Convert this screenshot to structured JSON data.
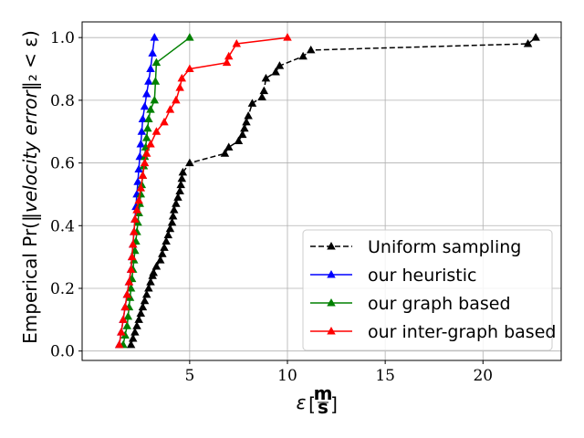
{
  "chart_data": {
    "type": "line",
    "xlabel_symbol": "ε",
    "xlabel_unit_num": "m",
    "xlabel_unit_den": "s",
    "ylabel_prefix": "Emperical Pr(‖",
    "ylabel_italic": "velocity error",
    "ylabel_suffix": "‖₂ < ε)",
    "xlim": [
      -0.5,
      24.0
    ],
    "ylim": [
      -0.03,
      1.05
    ],
    "xticks": [
      5,
      10,
      15,
      20
    ],
    "xtick_labels": [
      "5",
      "10",
      "15",
      "20"
    ],
    "yticks": [
      0.0,
      0.2,
      0.4,
      0.6,
      0.8,
      1.0
    ],
    "ytick_labels": [
      "0.0",
      "0.2",
      "0.4",
      "0.6",
      "0.8",
      "1.0"
    ],
    "grid": true,
    "legend_position": "bottom-right",
    "series": [
      {
        "name": "Uniform sampling",
        "color": "#000000",
        "dash": "dashed",
        "marker": "triangle",
        "x": [
          2.0,
          2.1,
          2.2,
          2.3,
          2.4,
          2.5,
          2.6,
          2.7,
          2.8,
          2.9,
          3.0,
          3.1,
          3.15,
          3.3,
          3.5,
          3.6,
          3.7,
          3.8,
          3.9,
          4.0,
          4.1,
          4.15,
          4.2,
          4.3,
          4.4,
          4.5,
          4.55,
          4.6,
          4.65,
          5.0,
          6.8,
          7.0,
          7.5,
          7.7,
          7.8,
          7.9,
          8.0,
          8.2,
          8.7,
          8.8,
          8.9,
          9.4,
          9.6,
          10.8,
          11.2,
          22.3,
          22.7
        ],
        "y": [
          0.02,
          0.04,
          0.06,
          0.08,
          0.1,
          0.12,
          0.14,
          0.16,
          0.18,
          0.2,
          0.22,
          0.24,
          0.25,
          0.27,
          0.29,
          0.31,
          0.33,
          0.35,
          0.37,
          0.39,
          0.41,
          0.43,
          0.45,
          0.47,
          0.49,
          0.51,
          0.53,
          0.55,
          0.57,
          0.6,
          0.63,
          0.65,
          0.67,
          0.69,
          0.71,
          0.73,
          0.75,
          0.79,
          0.81,
          0.83,
          0.87,
          0.89,
          0.91,
          0.94,
          0.96,
          0.98,
          1.0
        ]
      },
      {
        "name": "our heuristic",
        "color": "#0000ff",
        "dash": "solid",
        "marker": "triangle",
        "x": [
          1.4,
          1.5,
          1.6,
          1.7,
          1.8,
          1.9,
          2.0,
          2.05,
          2.1,
          2.15,
          2.2,
          2.25,
          2.3,
          2.35,
          2.4,
          2.45,
          2.5,
          2.55,
          2.6,
          2.7,
          2.8,
          2.9,
          3.0,
          3.1,
          3.2
        ],
        "y": [
          0.02,
          0.06,
          0.1,
          0.14,
          0.18,
          0.22,
          0.26,
          0.3,
          0.34,
          0.38,
          0.42,
          0.46,
          0.5,
          0.54,
          0.58,
          0.62,
          0.66,
          0.7,
          0.74,
          0.78,
          0.82,
          0.86,
          0.9,
          0.95,
          1.0
        ]
      },
      {
        "name": "our graph based",
        "color": "#008000",
        "dash": "solid",
        "marker": "triangle",
        "x": [
          1.6,
          1.7,
          1.8,
          1.85,
          1.9,
          1.95,
          2.0,
          2.05,
          2.1,
          2.15,
          2.2,
          2.25,
          2.3,
          2.35,
          2.4,
          2.45,
          2.5,
          2.55,
          2.6,
          2.65,
          2.7,
          2.75,
          2.8,
          2.85,
          2.9,
          3.0,
          3.2,
          3.25,
          3.3,
          5.0
        ],
        "y": [
          0.02,
          0.05,
          0.08,
          0.11,
          0.14,
          0.17,
          0.2,
          0.23,
          0.26,
          0.29,
          0.32,
          0.35,
          0.38,
          0.41,
          0.44,
          0.47,
          0.5,
          0.53,
          0.56,
          0.59,
          0.62,
          0.65,
          0.68,
          0.71,
          0.74,
          0.77,
          0.8,
          0.86,
          0.92,
          1.0
        ]
      },
      {
        "name": "our inter-graph based",
        "color": "#ff0000",
        "dash": "solid",
        "marker": "triangle",
        "x": [
          1.4,
          1.5,
          1.6,
          1.7,
          1.8,
          1.9,
          2.0,
          2.05,
          2.1,
          2.15,
          2.2,
          2.3,
          2.4,
          2.5,
          2.6,
          2.7,
          2.8,
          3.0,
          3.3,
          3.7,
          4.0,
          4.3,
          4.5,
          4.6,
          5.0,
          6.9,
          7.0,
          7.4,
          10.0
        ],
        "y": [
          0.02,
          0.06,
          0.1,
          0.14,
          0.18,
          0.22,
          0.26,
          0.3,
          0.34,
          0.38,
          0.42,
          0.45,
          0.48,
          0.52,
          0.56,
          0.6,
          0.63,
          0.66,
          0.7,
          0.73,
          0.77,
          0.8,
          0.84,
          0.87,
          0.9,
          0.92,
          0.94,
          0.98,
          1.0
        ]
      }
    ]
  }
}
